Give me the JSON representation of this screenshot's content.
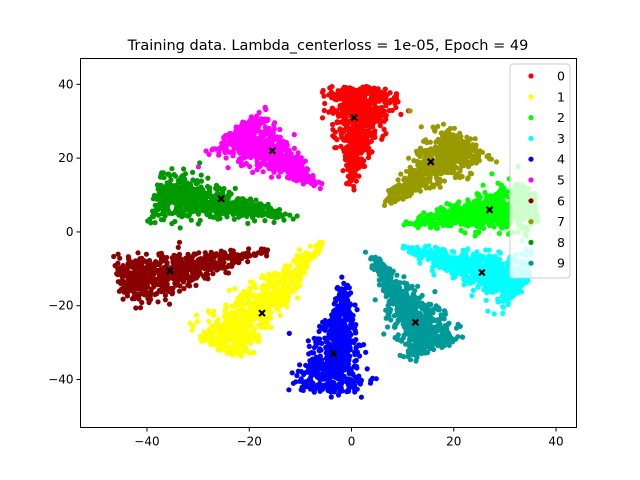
{
  "chart_data": {
    "type": "scatter",
    "title": "Training data. Lambda_centerloss = 1e-05, Epoch = 49",
    "xlabel": "",
    "ylabel": "",
    "xlim": [
      -53,
      44
    ],
    "ylim": [
      -53,
      47
    ],
    "xticks": [
      -40,
      -20,
      0,
      20,
      40
    ],
    "yticks": [
      -40,
      -20,
      0,
      20,
      40
    ],
    "xtick_labels": [
      "−40",
      "−20",
      "0",
      "20",
      "40"
    ],
    "ytick_labels": [
      "−40",
      "−20",
      "0",
      "20",
      "40"
    ],
    "grid": false,
    "legend_position": "top-right",
    "center_marker": "x",
    "center_color": "#000000",
    "series": [
      {
        "name": "0",
        "color": "#ff0000",
        "center": [
          0.5,
          31
        ],
        "tip": [
          0,
          12
        ],
        "head": [
          2,
          36
        ]
      },
      {
        "name": "1",
        "color": "#ffff00",
        "center": [
          -17.5,
          -22
        ],
        "tip": [
          -5,
          -2
        ],
        "head": [
          -24,
          -28
        ]
      },
      {
        "name": "2",
        "color": "#00ff00",
        "center": [
          27,
          6
        ],
        "tip": [
          10,
          2
        ],
        "head": [
          33,
          7
        ]
      },
      {
        "name": "3",
        "color": "#00ffff",
        "center": [
          25.5,
          -11
        ],
        "tip": [
          10,
          -4
        ],
        "head": [
          31,
          -13
        ]
      },
      {
        "name": "4",
        "color": "#0000ff",
        "center": [
          -3.5,
          -33
        ],
        "tip": [
          -1,
          -12
        ],
        "head": [
          -4,
          -40
        ]
      },
      {
        "name": "5",
        "color": "#ff00ff",
        "center": [
          -15.5,
          22
        ],
        "tip": [
          -6,
          12
        ],
        "head": [
          -21,
          26
        ]
      },
      {
        "name": "6",
        "color": "#8b0000",
        "center": [
          -35.5,
          -10.5
        ],
        "tip": [
          -16,
          -5
        ],
        "head": [
          -42,
          -13
        ]
      },
      {
        "name": "7",
        "color": "#999900",
        "center": [
          15.5,
          19
        ],
        "tip": [
          6,
          7
        ],
        "head": [
          21,
          23
        ]
      },
      {
        "name": "8",
        "color": "#009900",
        "center": [
          -25.5,
          9
        ],
        "tip": [
          -11,
          4
        ],
        "head": [
          -35,
          10
        ]
      },
      {
        "name": "9",
        "color": "#009999",
        "center": [
          12.5,
          -24.5
        ],
        "tip": [
          4,
          -6
        ],
        "head": [
          15,
          -29
        ]
      }
    ]
  }
}
